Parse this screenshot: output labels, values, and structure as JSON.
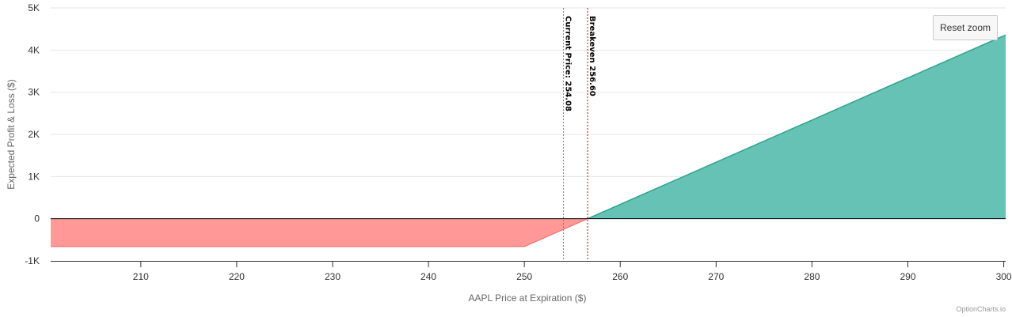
{
  "chart_data": {
    "type": "area",
    "xlabel": "AAPL Price at Expiration ($)",
    "ylabel": "Expected Profit & Loss ($)",
    "xlim": [
      200.6,
      300.2
    ],
    "ylim": [
      -1000,
      5000
    ],
    "x_ticks": [
      210,
      220,
      230,
      240,
      250,
      260,
      270,
      280,
      290,
      300
    ],
    "y_ticks": [
      -1000,
      0,
      1000,
      2000,
      3000,
      4000,
      5000
    ],
    "y_tick_labels": [
      "-1K",
      "0",
      "1K",
      "2K",
      "3K",
      "4K",
      "5K"
    ],
    "series": [
      {
        "x": [
          200.6,
          250,
          256.6,
          300.2
        ],
        "y": [
          -660,
          -660,
          0,
          4360
        ]
      }
    ],
    "loss_color": "#ff9896",
    "loss_line_color": "#f07470",
    "profit_color": "#66c2b5",
    "profit_line_color": "#2ca58d",
    "plot_lines": [
      {
        "value": 254.08,
        "label": "Current Price: 254.08",
        "color": "#3b8fd9",
        "style": "dotted"
      },
      {
        "value": 256.6,
        "label": "Breakeven 256.60",
        "color": "#cc0000",
        "style": "dotted"
      }
    ],
    "grid": true,
    "legend": "none"
  },
  "ui": {
    "reset_zoom_label": "Reset zoom",
    "credit": "OptionCharts.io"
  }
}
